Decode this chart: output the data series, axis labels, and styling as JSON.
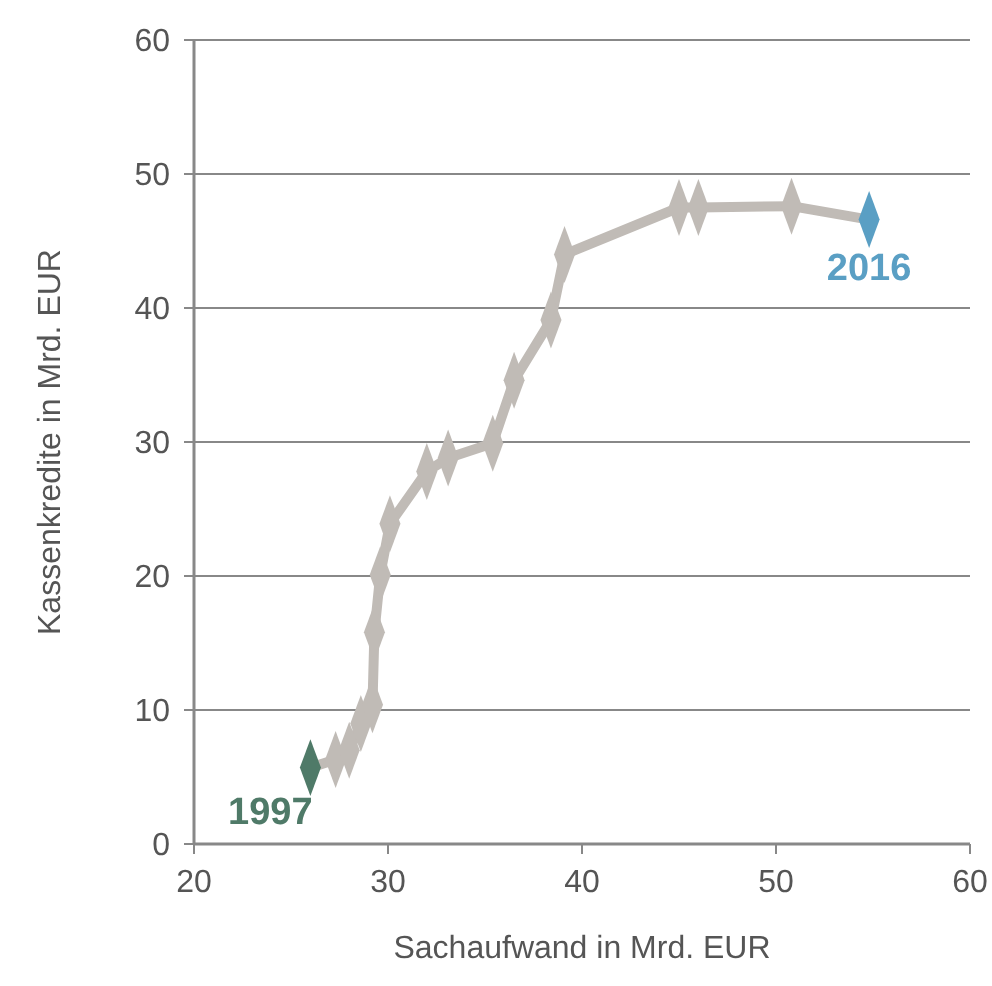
{
  "chart_data": {
    "type": "line",
    "xlabel": "Sachaufwand in Mrd. EUR",
    "ylabel": "Kassenkredite in Mrd. EUR",
    "x": [
      26.0,
      27.3,
      28.0,
      28.6,
      29.2,
      29.3,
      29.6,
      30.1,
      32.0,
      33.1,
      35.4,
      36.5,
      38.4,
      39.1,
      45.0,
      46.0,
      50.8,
      54.8
    ],
    "series": [
      {
        "color": "#c0bbb6",
        "values": [
          5.7,
          6.3,
          7.0,
          9.0,
          10.4,
          15.8,
          20.1,
          23.9,
          27.8,
          28.8,
          29.9,
          34.6,
          39.1,
          44.0,
          47.5,
          47.5,
          47.6,
          46.6
        ],
        "colors": [
          "#4f7a68",
          "#c0bbb6",
          "#c0bbb6",
          "#c0bbb6",
          "#c0bbb6",
          "#c0bbb6",
          "#c0bbb6",
          "#c0bbb6",
          "#c0bbb6",
          "#c0bbb6",
          "#c0bbb6",
          "#c0bbb6",
          "#c0bbb6",
          "#c0bbb6",
          "#c0bbb6",
          "#c0bbb6",
          "#c0bbb6",
          "#5a9fc4"
        ]
      }
    ],
    "xlim": [
      20,
      60
    ],
    "xticks": [
      20,
      30,
      40,
      50,
      60
    ],
    "ylim": [
      0,
      60
    ],
    "yticks": [
      0,
      10,
      20,
      30,
      40,
      50,
      60
    ],
    "grid": "y",
    "marker": "diamond",
    "line_style": "solid",
    "annotations": [
      {
        "text": "1997",
        "x": 26.0,
        "y": 5.7
      },
      {
        "text": "2016",
        "x": 54.8,
        "y": 46.6
      }
    ]
  }
}
